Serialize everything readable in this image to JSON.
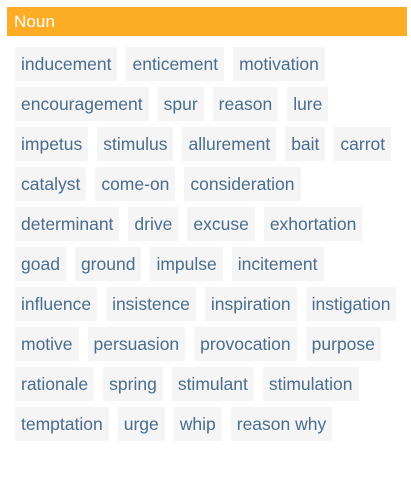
{
  "section": {
    "title": "Noun",
    "header_color": "#fdad25",
    "text_color": "#4a6d8d"
  },
  "synonyms": [
    "inducement",
    "enticement",
    "motivation",
    "encouragement",
    "spur",
    "reason",
    "lure",
    "impetus",
    "stimulus",
    "allurement",
    "bait",
    "carrot",
    "catalyst",
    "come-on",
    "consideration",
    "determinant",
    "drive",
    "excuse",
    "exhortation",
    "goad",
    "ground",
    "impulse",
    "incitement",
    "influence",
    "insistence",
    "inspiration",
    "instigation",
    "motive",
    "persuasion",
    "provocation",
    "purpose",
    "rationale",
    "spring",
    "stimulant",
    "stimulation",
    "temptation",
    "urge",
    "whip",
    "reason why"
  ]
}
